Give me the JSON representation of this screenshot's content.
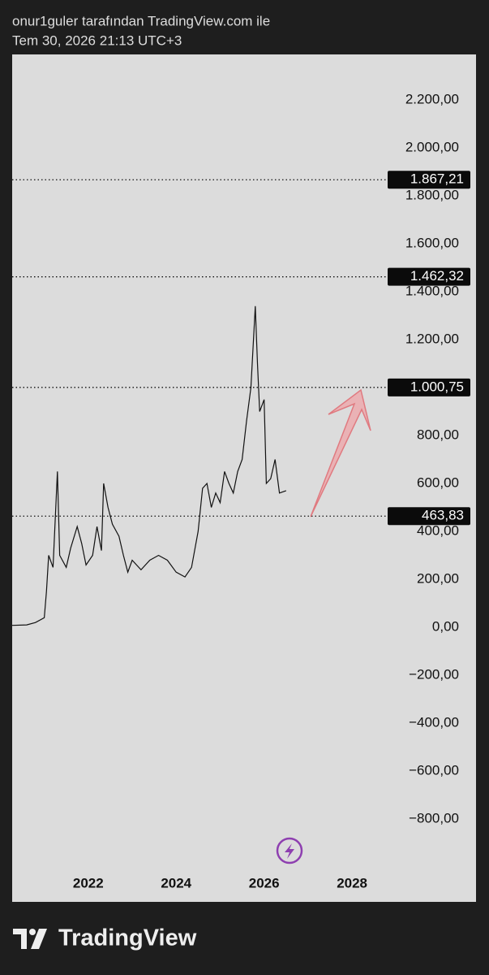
{
  "header": {
    "author_line": "onur1guler tarafından TradingView.com ile",
    "timestamp": "Tem 30, 2026 21:13 UTC+3"
  },
  "footer": {
    "brand": "TradingView"
  },
  "chart_data": {
    "type": "line",
    "color": "#111111",
    "x": [
      2020.27,
      2020.6,
      2020.8,
      2021.0,
      2021.05,
      2021.1,
      2021.2,
      2021.3,
      2021.35,
      2021.5,
      2021.6,
      2021.75,
      2021.85,
      2021.95,
      2022.1,
      2022.2,
      2022.3,
      2022.35,
      2022.45,
      2022.55,
      2022.7,
      2022.8,
      2022.9,
      2023.0,
      2023.2,
      2023.4,
      2023.6,
      2023.8,
      2024.0,
      2024.2,
      2024.35,
      2024.5,
      2024.6,
      2024.7,
      2024.8,
      2024.9,
      2025.0,
      2025.1,
      2025.2,
      2025.3,
      2025.4,
      2025.5,
      2025.6,
      2025.7,
      2025.8,
      2025.85,
      2025.9,
      2026.0,
      2026.05,
      2026.15,
      2026.25,
      2026.35,
      2026.5
    ],
    "values": [
      8,
      10,
      20,
      40,
      150,
      300,
      250,
      650,
      300,
      250,
      330,
      420,
      350,
      260,
      300,
      420,
      320,
      600,
      500,
      430,
      380,
      300,
      230,
      280,
      240,
      280,
      300,
      280,
      230,
      210,
      250,
      400,
      580,
      600,
      500,
      560,
      520,
      650,
      600,
      560,
      650,
      700,
      860,
      1000,
      1340,
      1100,
      900,
      950,
      600,
      620,
      700,
      560,
      570
    ],
    "xlim": [
      2020.27,
      2030.82
    ],
    "xticks": [
      2022,
      2024,
      2026,
      2028
    ],
    "ylim": [
      -1010,
      2390
    ],
    "yticks": [
      {
        "value": 2200,
        "label": "2.200,00"
      },
      {
        "value": 2000,
        "label": "2.000,00"
      },
      {
        "value": 1800,
        "label": "1.800,00"
      },
      {
        "value": 1600,
        "label": "1.600,00"
      },
      {
        "value": 1400,
        "label": "1.400,00"
      },
      {
        "value": 1200,
        "label": "1.200,00"
      },
      {
        "value": 800,
        "label": "800,00"
      },
      {
        "value": 600,
        "label": "600,00"
      },
      {
        "value": 400,
        "label": "400,00"
      },
      {
        "value": 200,
        "label": "200,00"
      },
      {
        "value": 0,
        "label": "0,00"
      },
      {
        "value": -200,
        "label": "−200,00"
      },
      {
        "value": -400,
        "label": "−400,00"
      },
      {
        "value": -600,
        "label": "−600,00"
      },
      {
        "value": -800,
        "label": "−800,00"
      }
    ],
    "price_lines": [
      {
        "value": 1867.21,
        "label": "1.867,21"
      },
      {
        "value": 1462.32,
        "label": "1.462,32"
      },
      {
        "value": 1000.75,
        "label": "1.000,75"
      },
      {
        "value": 463.83,
        "label": "463,83"
      }
    ]
  }
}
